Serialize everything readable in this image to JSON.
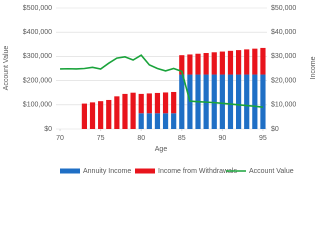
{
  "chart_data": {
    "type": "combo",
    "x_label": "Age",
    "y_label": "Account Value",
    "y2_label": "Income",
    "x": [
      70,
      71,
      72,
      73,
      74,
      75,
      76,
      77,
      78,
      79,
      80,
      81,
      82,
      83,
      84,
      85,
      86,
      87,
      88,
      89,
      90,
      91,
      92,
      93,
      94,
      95
    ],
    "xlim": [
      69.5,
      95.5
    ],
    "xticks": [
      70,
      75,
      80,
      85,
      90,
      95
    ],
    "ylim": [
      0,
      500000
    ],
    "yticks": [
      {
        "value": 0,
        "label": "$0"
      },
      {
        "value": 100000,
        "label": "$100,000"
      },
      {
        "value": 200000,
        "label": "$200,000"
      },
      {
        "value": 300000,
        "label": "$300,000"
      },
      {
        "value": 400000,
        "label": "$400,000"
      },
      {
        "value": 500000,
        "label": "$500,000"
      }
    ],
    "y2lim": [
      0,
      50000
    ],
    "y2ticks": [
      {
        "value": 0,
        "label": "$0"
      },
      {
        "value": 10000,
        "label": "$10,000"
      },
      {
        "value": 20000,
        "label": "$20,000"
      },
      {
        "value": 30000,
        "label": "$30,000"
      },
      {
        "value": 40000,
        "label": "$40,000"
      },
      {
        "value": 50000,
        "label": "$50,000"
      }
    ],
    "grid": true,
    "series": [
      {
        "name": "Annuity Income",
        "kind": "bar",
        "axis": "y2",
        "color": "#1f6fc5",
        "values": [
          null,
          null,
          null,
          null,
          null,
          null,
          null,
          null,
          null,
          null,
          6500,
          6500,
          6500,
          6500,
          6500,
          22500,
          22500,
          22500,
          22500,
          22500,
          22500,
          22500,
          22500,
          22500,
          22500,
          22500
        ]
      },
      {
        "name": "Income from Withdrawals",
        "kind": "bar",
        "axis": "y2",
        "color": "#e8141c",
        "values": [
          null,
          null,
          null,
          10500,
          11000,
          11500,
          12000,
          13500,
          14500,
          15000,
          8000,
          8200,
          8400,
          8600,
          8800,
          8000,
          8300,
          8600,
          8900,
          9200,
          9500,
          9800,
          10100,
          10400,
          10700,
          11000
        ]
      },
      {
        "name": "Account Value",
        "kind": "line",
        "axis": "y",
        "color": "#1aa33b",
        "values": [
          248000,
          249000,
          248000,
          250000,
          255000,
          248000,
          272000,
          293000,
          298000,
          285000,
          305000,
          265000,
          250000,
          240000,
          250000,
          238000,
          115000,
          113000,
          111000,
          109000,
          106000,
          103000,
          100000,
          97000,
          94000,
          90000
        ]
      }
    ]
  }
}
